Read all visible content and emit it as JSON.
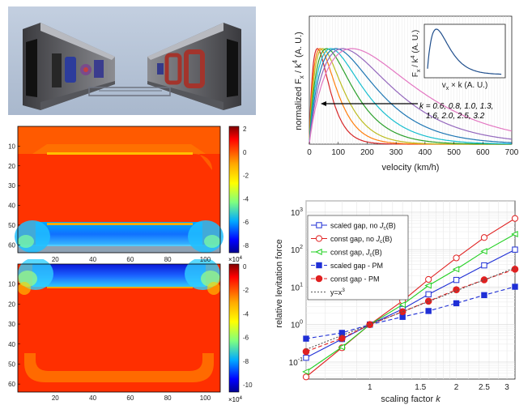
{
  "colors": {
    "sg_noJc": "#1f2fd6",
    "cg_noJc": "#e02020",
    "cg_Jc": "#22d022",
    "sg_pm": "#1f2fd6",
    "cg_pm": "#e02020",
    "ref": "#555555"
  },
  "render_panel": {
    "label": "3D rendering of superconducting levitation track"
  },
  "chart_data": [
    {
      "type": "line",
      "id": "velocity",
      "title": "",
      "xlabel": "velocity (km/h)",
      "ylabel": "normalized Fx / k^4 (A. U.)",
      "ylabel_text": {
        "main": "normalized F",
        "sub": "x",
        "rest": " / k",
        "sup": "4",
        "tail": " (A. U.)"
      },
      "xlim": [
        0,
        700
      ],
      "xticks": [
        0,
        100,
        200,
        300,
        400,
        500,
        600,
        700
      ],
      "annotation": {
        "line1": "k = 0.6, 0.8, 1.0, 1.3,",
        "line2": "1.6, 2.0, 2.5, 3.2"
      },
      "k_values": [
        0.6,
        0.8,
        1.0,
        1.3,
        1.6,
        2.0,
        2.5,
        3.2
      ],
      "peak_velocity": [
        28,
        37,
        46,
        60,
        74,
        92,
        115,
        147
      ],
      "series_colors": [
        "#d62728",
        "#ff7f0e",
        "#bcbd22",
        "#2ca02c",
        "#17becf",
        "#1f77b4",
        "#9467bd",
        "#e377c2"
      ],
      "inset": {
        "xlabel": {
          "a": "v",
          "b": "x",
          "c": " × k (A. U.)"
        },
        "ylabel": {
          "a": "F",
          "b": "x",
          "c": " / k",
          "d": "4",
          "e": " (A. U.)"
        }
      }
    },
    {
      "type": "line",
      "id": "scaling",
      "xlabel": "scaling factor k",
      "xlabel_parts": {
        "main": "scaling factor ",
        "ital": "k"
      },
      "ylabel": "relative levitation force",
      "xscale": "log",
      "yscale": "log",
      "xlim": [
        0.6,
        3.2
      ],
      "ylim": [
        0.035,
        2000
      ],
      "xticks": [
        1,
        1.5,
        2,
        2.5,
        3
      ],
      "xtick_labels": [
        "1",
        "1.5",
        "2",
        "2.5",
        "3"
      ],
      "ytick_exps": [
        -1,
        0,
        1,
        2,
        3
      ],
      "x": [
        0.6,
        0.8,
        1.0,
        1.3,
        1.6,
        2.0,
        2.5,
        3.2
      ],
      "series": [
        {
          "name": "scaled gap, no Jc(B)",
          "legend": {
            "a": "scaled gap, no ",
            "i": "J",
            "s": "c",
            "b": "(B)"
          },
          "colorKey": "sg_noJc",
          "dash": false,
          "marker": "square-open",
          "values": [
            0.13,
            0.41,
            1.0,
            2.6,
            6.4,
            15.5,
            38,
            100
          ]
        },
        {
          "name": "const gap, no Jc(B)",
          "legend": {
            "a": "const gap, no ",
            "i": "J",
            "s": "c",
            "b": "(B)"
          },
          "colorKey": "cg_noJc",
          "dash": false,
          "marker": "circle-open",
          "values": [
            0.04,
            0.24,
            1.0,
            4.3,
            16,
            60,
            210,
            680
          ]
        },
        {
          "name": "const gap, Jc(B)",
          "legend": {
            "a": "const gap, ",
            "i": "J",
            "s": "c",
            "b": "(B)"
          },
          "colorKey": "cg_Jc",
          "dash": false,
          "marker": "triangle-open",
          "values": [
            0.055,
            0.25,
            1.0,
            3.4,
            11,
            30,
            90,
            260
          ]
        },
        {
          "name": "scaled gap - PM",
          "legend": {
            "a": "scaled gap - PM",
            "i": "",
            "s": "",
            "b": ""
          },
          "colorKey": "sg_pm",
          "dash": true,
          "marker": "square-filled",
          "values": [
            0.42,
            0.6,
            1.0,
            1.6,
            2.3,
            3.7,
            6.1,
            10.2
          ]
        },
        {
          "name": "const gap - PM",
          "legend": {
            "a": "const gap - PM",
            "i": "",
            "s": "",
            "b": ""
          },
          "colorKey": "cg_pm",
          "dash": true,
          "marker": "circle-filled",
          "values": [
            0.19,
            0.43,
            1.0,
            2.2,
            4.2,
            8.5,
            15.6,
            30
          ]
        },
        {
          "name": "y=x^3",
          "legend": {
            "a": "y=x",
            "i": "",
            "s": "",
            "b": "",
            "sup": "3"
          },
          "colorKey": "ref",
          "dash": true,
          "marker": "none",
          "values": [
            0.216,
            0.512,
            1.0,
            2.197,
            4.096,
            8.0,
            15.625,
            32.77
          ]
        }
      ]
    },
    {
      "type": "heatmap",
      "id": "heatmap-top",
      "yticks": [
        10,
        20,
        30,
        40,
        50,
        60
      ],
      "xticks": [
        20,
        40,
        60,
        80,
        100
      ],
      "colorbar": {
        "ticks": [
          "2",
          "0",
          "-2",
          "-4",
          "-6",
          "-8"
        ],
        "exponent_base": "×10",
        "exponent": "4"
      }
    },
    {
      "type": "heatmap",
      "id": "heatmap-bottom",
      "yticks": [
        10,
        20,
        30,
        40,
        50,
        60
      ],
      "xticks": [
        20,
        40,
        60,
        80,
        100
      ],
      "colorbar": {
        "ticks": [
          "0",
          "-2",
          "-4",
          "-6",
          "-8",
          "-10"
        ],
        "exponent_base": "×10",
        "exponent": "4"
      }
    }
  ]
}
